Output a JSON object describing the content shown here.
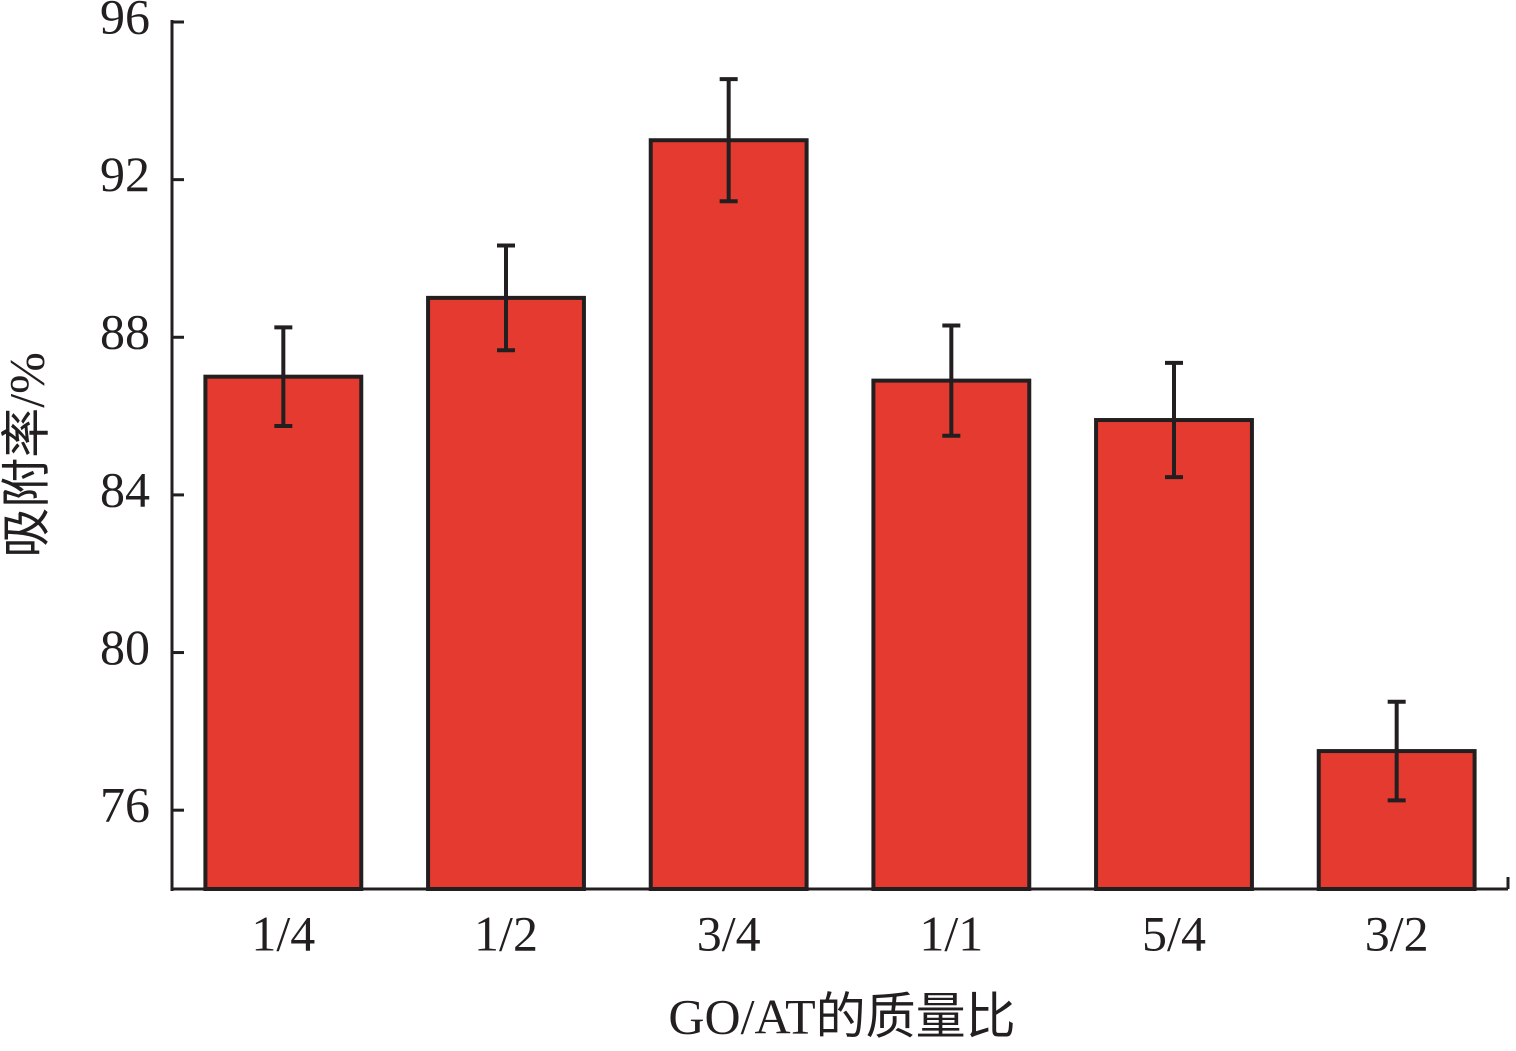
{
  "chart_data": {
    "type": "bar",
    "x_label": "GO/AT的质量比",
    "y_label": "吸附率/%",
    "categories": [
      "1/4",
      "1/2",
      "3/4",
      "1/1",
      "5/4",
      "3/2"
    ],
    "values": [
      87.0,
      89.0,
      93.0,
      86.9,
      85.9,
      77.5
    ],
    "errors": [
      1.25,
      1.33,
      1.55,
      1.4,
      1.45,
      1.25
    ],
    "color": "#e53a30",
    "ylim": [
      74,
      96
    ],
    "yticks": [
      76,
      80,
      84,
      88,
      92,
      96
    ],
    "grid": false
  }
}
